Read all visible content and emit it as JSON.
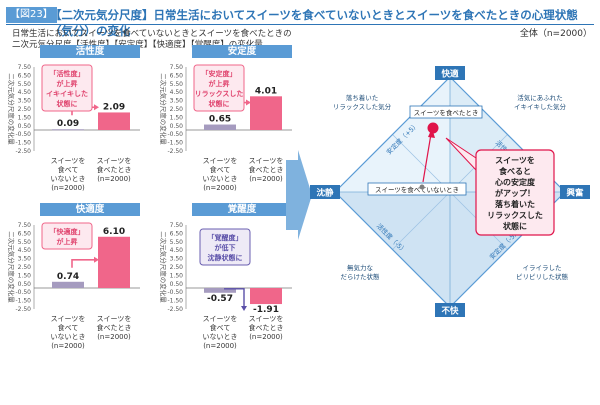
{
  "header": {
    "fig_label": "【図23】",
    "title": "【二次元気分尺度】日常生活においてスイーツを食べていないときとスイーツを食べたときの心理状態（気分）の変化",
    "subtitle_line1": "日常生活においてスイーツを食べていないときとスイーツを食べたときの",
    "subtitle_line2": "二次元気分尺度【活性度】【安定度】【快適度】【覚醒度】の変化量",
    "total_label": "全体（n=2000）"
  },
  "colors": {
    "not_eaten": "#a59bbf",
    "eaten": "#f0668a",
    "accent_blue": "#5a9bd5",
    "callout_border": "#f0668a",
    "callout_fill": "#fde9ef"
  },
  "common": {
    "ylabel": "二次元気分尺度の変化量",
    "cat_not_eaten": [
      "スイーツを",
      "食べて",
      "いないとき",
      "(n=2000)"
    ],
    "cat_eaten": [
      "スイーツを",
      "食べたとき",
      "(n=2000)"
    ]
  },
  "chart_data": [
    {
      "type": "bar",
      "title": "活性度",
      "categories": [
        "スイーツを食べていないとき",
        "スイーツを食べたとき"
      ],
      "values": [
        0.09,
        2.09
      ],
      "labels": [
        "0.09",
        "2.09"
      ],
      "ylim": [
        -2.5,
        7.5
      ],
      "ticks": [
        "7.50",
        "6.50",
        "5.50",
        "4.50",
        "3.50",
        "2.50",
        "1.50",
        "0.50",
        "-0.50",
        "-1.50",
        "-2.50"
      ],
      "callout": [
        "「活性度」",
        "が上昇",
        "イキイキした",
        "状態に"
      ]
    },
    {
      "type": "bar",
      "title": "安定度",
      "categories": [
        "スイーツを食べていないとき",
        "スイーツを食べたとき"
      ],
      "values": [
        0.65,
        4.01
      ],
      "labels": [
        "0.65",
        "4.01"
      ],
      "ylim": [
        -2.5,
        7.5
      ],
      "ticks": [
        "7.50",
        "6.50",
        "5.50",
        "4.50",
        "3.50",
        "2.50",
        "1.50",
        "0.50",
        "-0.50",
        "-1.50",
        "-2.50"
      ],
      "callout": [
        "「安定度」",
        "が上昇",
        "リラックスした",
        "状態に"
      ]
    },
    {
      "type": "bar",
      "title": "快適度",
      "categories": [
        "スイーツを食べていないとき",
        "スイーツを食べたとき"
      ],
      "values": [
        0.74,
        6.1
      ],
      "labels": [
        "0.74",
        "6.10"
      ],
      "ylim": [
        -2.5,
        7.5
      ],
      "ticks": [
        "7.50",
        "6.50",
        "5.50",
        "4.50",
        "3.50",
        "2.50",
        "1.50",
        "0.50",
        "-0.50",
        "-1.50",
        "-2.50"
      ],
      "callout": [
        "「快適度」",
        "が上昇"
      ]
    },
    {
      "type": "bar",
      "title": "覚醒度",
      "categories": [
        "スイーツを食べていないとき",
        "スイーツを食べたとき"
      ],
      "values": [
        -0.57,
        -1.91
      ],
      "labels": [
        "-0.57",
        "-1.91"
      ],
      "ylim": [
        -2.5,
        7.5
      ],
      "ticks": [
        "7.50",
        "6.50",
        "5.50",
        "4.50",
        "3.50",
        "2.50",
        "1.50",
        "0.50",
        "-0.50",
        "-1.50",
        "-2.50"
      ],
      "callout": [
        "「覚醒度」",
        "が低下",
        "沈静状態に"
      ]
    }
  ],
  "diagram": {
    "top": "快適",
    "bottom": "不快",
    "left": "沈静",
    "right": "興奮",
    "axis_stability": "安定度（+5）",
    "axis_activity": "活性度（+5）",
    "axis_activity_neg": "活性度（-5）",
    "axis_stability_neg": "安定度（-5）",
    "q_top_left": [
      "落ち着いた",
      "リラックスした気分"
    ],
    "q_top_right": [
      "活気にあふれた",
      "イキイキした気分"
    ],
    "q_bottom_left": [
      "無気力な",
      "だらけた状態"
    ],
    "q_bottom_right": [
      "イライラした",
      "ピリピリした状態"
    ],
    "point_eaten": "スイーツを食べたとき",
    "point_not_eaten": "スイーツを食べていないとき",
    "callout": [
      "スイーツを",
      "食べると",
      "心の安定度",
      "がアップ！",
      "落ち着いた",
      "リラックスした",
      "状態に"
    ]
  }
}
